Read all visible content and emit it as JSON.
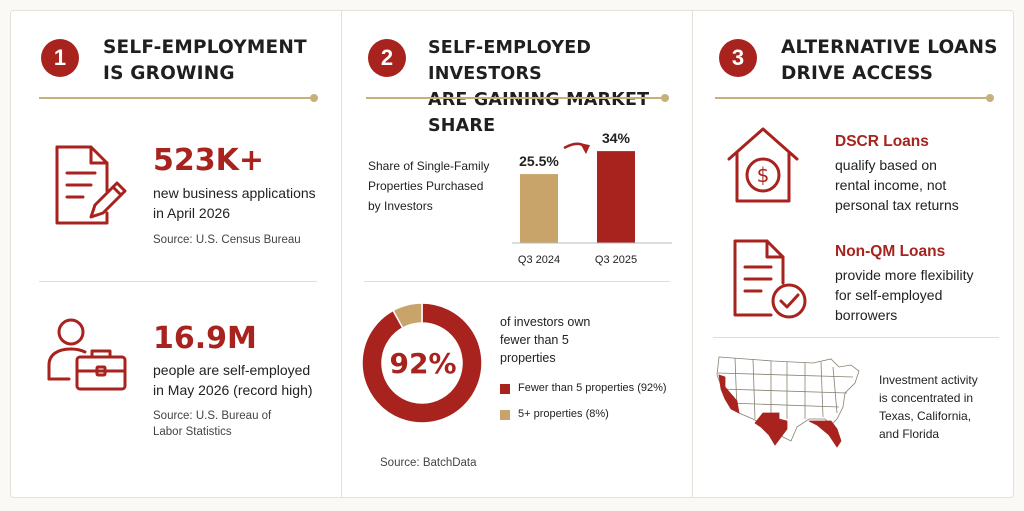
{
  "sections": [
    {
      "number": "1",
      "title_line1": "SELF-EMPLOYMENT",
      "title_line2": "IS GROWING",
      "stat1": {
        "value": "523K+",
        "line1": "new business applications",
        "line2": "in April 2026",
        "source": "Source: U.S. Census Bureau",
        "icon": "document-pen-icon"
      },
      "stat2": {
        "value": "16.9M",
        "line1": "people are self-employed",
        "line2": "in May 2026 (record high)",
        "source_line1": "Source: U.S. Bureau of",
        "source_line2": "Labor Statistics",
        "icon": "person-briefcase-icon"
      }
    },
    {
      "number": "2",
      "title_line1": "SELF-EMPLOYED INVESTORS",
      "title_line2": "ARE GAINING MARKET SHARE",
      "bar_caption_line1": "Share of Single-Family",
      "bar_caption_line2": "Properties Purchased",
      "bar_caption_line3": "by Investors",
      "donut_center": "92%",
      "donut_caption_line1": "of investors own",
      "donut_caption_line2": "fewer than 5",
      "donut_caption_line3": "properties",
      "source": "Source: BatchData"
    },
    {
      "number": "3",
      "title_line1": "ALTERNATIVE LOANS",
      "title_line2": "DRIVE ACCESS",
      "loan1": {
        "title": "DSCR Loans",
        "line1": "qualify based on",
        "line2": "rental income, not",
        "line3": "personal tax returns",
        "icon": "house-dollar-icon"
      },
      "loan2": {
        "title": "Non-QM Loans",
        "line1": "provide more flexibility",
        "line2": "for self-employed",
        "line3": "borrowers",
        "icon": "document-check-icon"
      },
      "map": {
        "line1": "Investment activity",
        "line2": "is concentrated in",
        "line3": "Texas, California,",
        "line4": "and Florida",
        "icon": "us-map-icon"
      }
    }
  ],
  "colors": {
    "accent": "#a8221e",
    "tan": "#c8a46a",
    "rule": "#c8b07a"
  },
  "chart_data": [
    {
      "type": "bar",
      "categories": [
        "Q3 2024",
        "Q3 2025"
      ],
      "values": [
        25.5,
        34
      ],
      "value_labels": [
        "25.5%",
        "34%"
      ],
      "colors": [
        "#c8a46a",
        "#a8221e"
      ]
    },
    {
      "type": "pie",
      "labels": [
        "Fewer than 5 properties (92%)",
        "5+ properties (8%)"
      ],
      "values": [
        92,
        8
      ],
      "colors": [
        "#a8221e",
        "#c8a46a"
      ]
    }
  ]
}
